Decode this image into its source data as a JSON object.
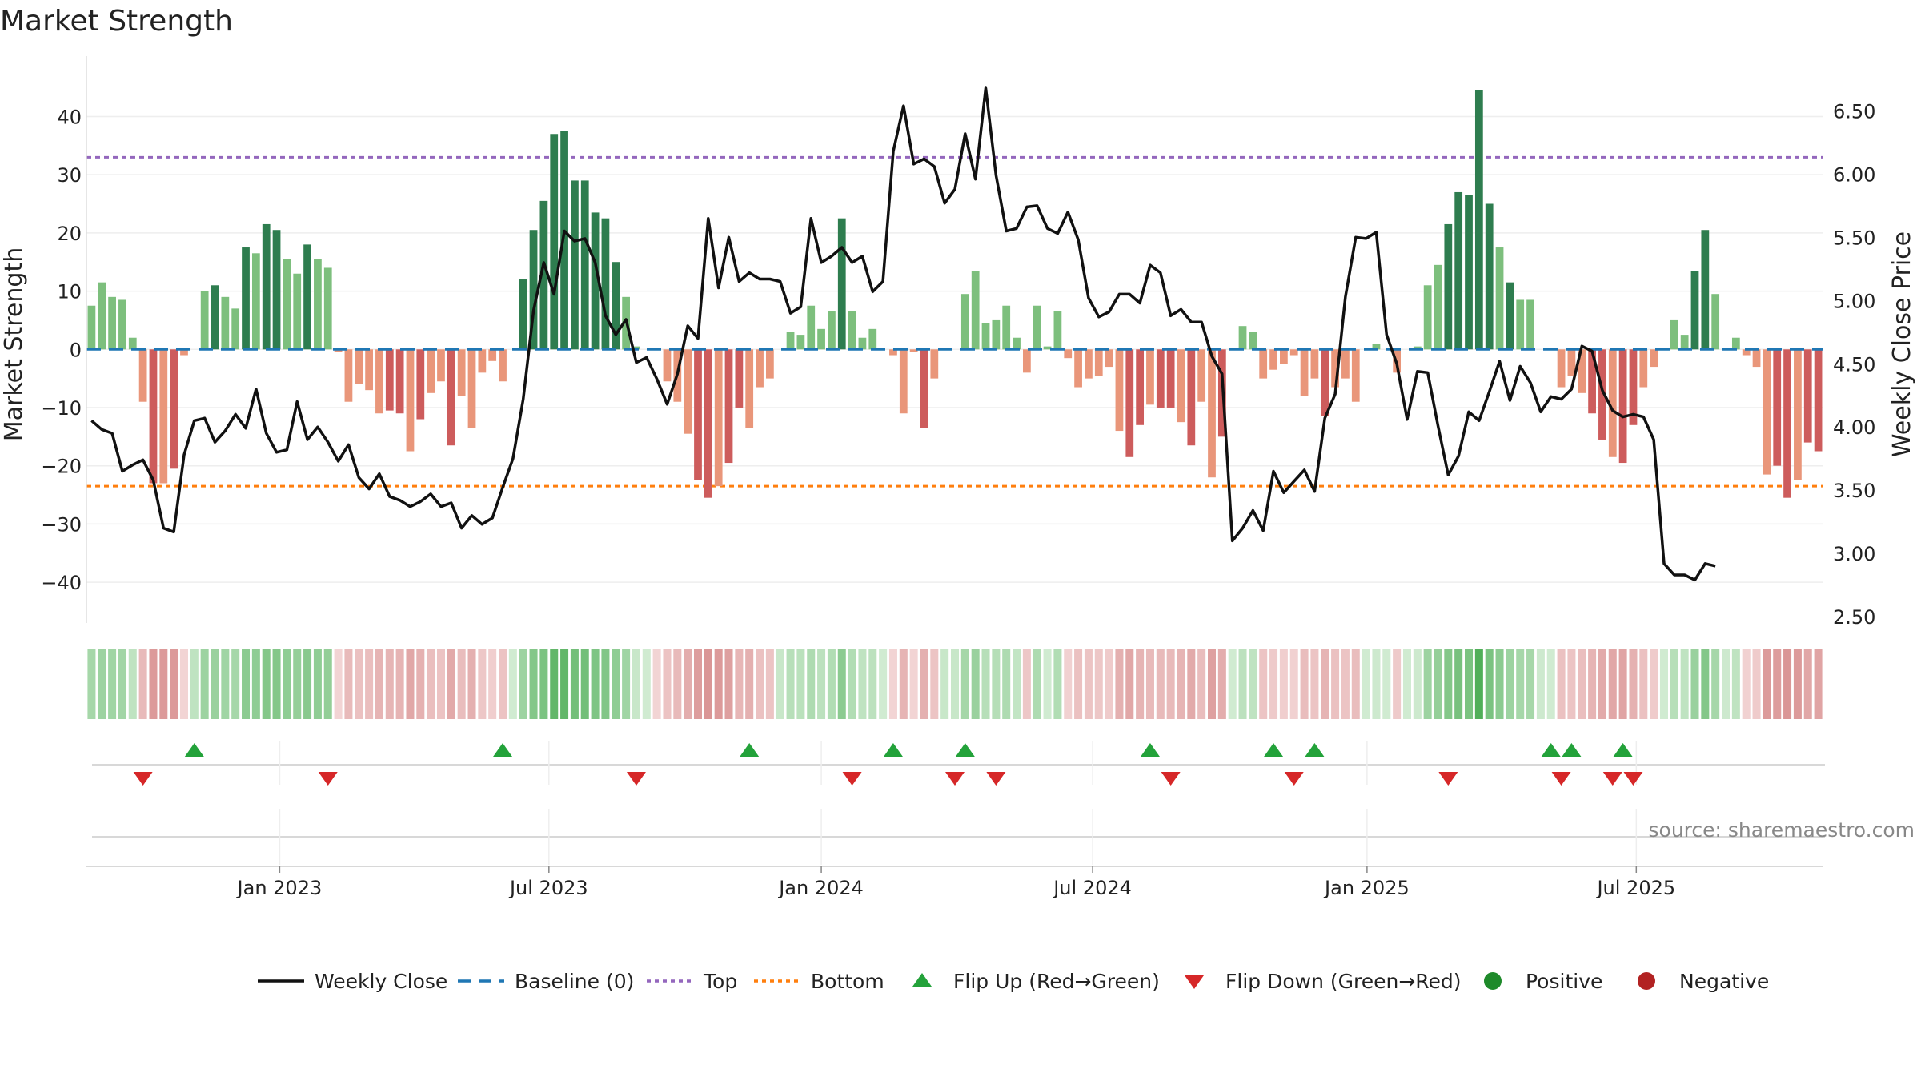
{
  "title": "Market Strength",
  "source": "source: sharemaestro.com",
  "colors": {
    "pos_dark": "#2e7d4f",
    "pos_light": "#7dbf7d",
    "neg_dark": "#cd5c5c",
    "neg_light": "#e9967a",
    "line": "#111111",
    "baseline": "#1f77b4",
    "top": "#9467bd",
    "bottom": "#ff7f0e",
    "flip_up": "#23a23a",
    "flip_down": "#d62728",
    "pos_dot": "#1e8a2a",
    "neg_dot": "#b22222"
  },
  "chart_data": {
    "type": "bar+line",
    "title": "Market Strength",
    "ylabel": "Market Strength",
    "y2label": "Weekly Close Price",
    "ylim": [
      -47,
      49
    ],
    "y2lim": [
      2.45,
      6.87
    ],
    "yticks": [
      40,
      30,
      20,
      10,
      0,
      -10,
      -20,
      -30,
      -40
    ],
    "ytick_labels": [
      "40",
      "30",
      "20",
      "10",
      "0",
      "−10",
      "−20",
      "−30",
      "−40"
    ],
    "y2ticks": [
      6.5,
      6.0,
      5.5,
      5.0,
      4.5,
      4.0,
      3.5,
      3.0,
      2.5
    ],
    "y2tick_labels": [
      "6.50",
      "6.00",
      "5.50",
      "5.00",
      "4.50",
      "4.00",
      "3.50",
      "3.00",
      "2.50"
    ],
    "x_tick_positions": [
      18.8,
      45.0,
      71.5,
      97.9,
      124.6,
      150.8
    ],
    "x_tick_labels": [
      "Jan 2023",
      "Jul 2023",
      "Jan 2024",
      "Jul 2024",
      "Jan 2025",
      "Jul 2025"
    ],
    "top_line": 33,
    "bottom_line": -23.5,
    "baseline": 0,
    "strength": [
      7.5,
      11.5,
      9,
      8.5,
      2,
      -9,
      -23,
      -23,
      -20.5,
      -1,
      0,
      10,
      11,
      9,
      7,
      17.5,
      16.5,
      21.5,
      20.5,
      15.5,
      13,
      18,
      15.5,
      14,
      -0.5,
      -9,
      -6,
      -7,
      -11,
      -10.5,
      -11,
      -17.5,
      -12,
      -7.5,
      -5.5,
      -16.5,
      -8,
      -13.5,
      -4,
      -2,
      -5.5,
      0,
      12,
      20.5,
      25.5,
      37,
      37.5,
      29,
      29,
      23.5,
      22.5,
      15,
      9,
      0.5,
      0,
      0,
      -5.5,
      -9,
      -14.5,
      -22.5,
      -25.5,
      -23.5,
      -19.5,
      -10,
      -13.5,
      -6.5,
      -5,
      0,
      3,
      2.5,
      7.5,
      3.5,
      6.5,
      22.5,
      6.5,
      2,
      3.5,
      0,
      -1,
      -11,
      -0.5,
      -13.5,
      -5,
      0,
      0,
      9.5,
      13.5,
      4.5,
      5,
      7.5,
      2,
      -4,
      7.5,
      0.5,
      6.5,
      -1.5,
      -6.5,
      -5,
      -4.5,
      -3,
      -14,
      -18.5,
      -13,
      -9.5,
      -10,
      -10,
      -12.5,
      -16.5,
      -9,
      -22,
      -15,
      0,
      4,
      3,
      -5,
      -3.5,
      -2.5,
      -1,
      -8,
      -5,
      -11.5,
      -6.5,
      -5,
      -9,
      0,
      1,
      0,
      -4,
      0,
      0.5,
      11,
      14.5,
      21.5,
      27,
      26.5,
      44.5,
      25,
      17.5,
      11.5,
      8.5,
      8.5,
      0,
      0,
      -6.5,
      -4.5,
      -7.5,
      -11,
      -15.5,
      -18.5,
      -19.5,
      -13,
      -6.5,
      -3,
      0,
      5,
      2.5,
      13.5,
      20.5,
      9.5,
      0,
      2,
      -1,
      -3,
      -21.5,
      -20,
      -25.5,
      -22.5,
      -16,
      -17.5
    ],
    "close": [
      4.05,
      3.98,
      3.95,
      3.65,
      3.7,
      3.74,
      3.58,
      3.2,
      3.17,
      3.78,
      4.05,
      4.07,
      3.88,
      3.97,
      4.1,
      3.99,
      4.3,
      3.95,
      3.8,
      3.82,
      4.2,
      3.9,
      4.0,
      3.88,
      3.73,
      3.86,
      3.6,
      3.51,
      3.63,
      3.45,
      3.42,
      3.37,
      3.41,
      3.47,
      3.37,
      3.4,
      3.2,
      3.3,
      3.23,
      3.28,
      3.52,
      3.75,
      4.22,
      4.92,
      5.3,
      5.05,
      5.55,
      5.47,
      5.49,
      5.3,
      4.88,
      4.73,
      4.85,
      4.51,
      4.55,
      4.38,
      4.18,
      4.42,
      4.8,
      4.7,
      5.65,
      5.1,
      5.5,
      5.15,
      5.22,
      5.17,
      5.17,
      5.15,
      4.9,
      4.95,
      5.65,
      5.3,
      5.35,
      5.42,
      5.3,
      5.35,
      5.07,
      5.15,
      6.18,
      6.54,
      6.08,
      6.12,
      6.06,
      5.77,
      5.88,
      6.32,
      5.96,
      6.68,
      5.99,
      5.55,
      5.57,
      5.74,
      5.75,
      5.57,
      5.53,
      5.7,
      5.48,
      5.02,
      4.87,
      4.91,
      5.05,
      5.05,
      4.98,
      5.28,
      5.22,
      4.88,
      4.93,
      4.83,
      4.83,
      4.56,
      4.42,
      3.1,
      3.2,
      3.34,
      3.18,
      3.65,
      3.48,
      3.57,
      3.66,
      3.49,
      4.07,
      4.26,
      5.03,
      5.5,
      5.49,
      5.54,
      4.73,
      4.5,
      4.06,
      4.44,
      4.43,
      4.01,
      3.62,
      3.77,
      4.12,
      4.05,
      4.28,
      4.52,
      4.21,
      4.48,
      4.35,
      4.12,
      4.24,
      4.22,
      4.3,
      4.64,
      4.6,
      4.29,
      4.13,
      4.08,
      4.1,
      4.08,
      3.9,
      2.92,
      2.83,
      2.83,
      2.79,
      2.92,
      2.9
    ],
    "zone_strength": [
      0.35,
      0.4,
      0.38,
      0.37,
      0.2,
      -0.3,
      -0.55,
      -0.55,
      -0.55,
      -0.1,
      0.2,
      0.4,
      0.42,
      0.38,
      0.35,
      0.5,
      0.48,
      0.55,
      0.55,
      0.48,
      0.45,
      0.52,
      0.48,
      0.46,
      -0.1,
      -0.3,
      -0.25,
      -0.27,
      -0.35,
      -0.34,
      -0.35,
      -0.45,
      -0.37,
      -0.27,
      -0.23,
      -0.43,
      -0.28,
      -0.38,
      -0.2,
      -0.15,
      -0.23,
      0.1,
      0.4,
      0.55,
      0.6,
      0.75,
      0.75,
      0.65,
      0.65,
      0.58,
      0.56,
      0.48,
      0.38,
      0.15,
      0.1,
      -0.1,
      -0.23,
      -0.3,
      -0.4,
      -0.52,
      -0.58,
      -0.55,
      -0.5,
      -0.33,
      -0.38,
      -0.25,
      -0.22,
      0.15,
      0.25,
      0.23,
      0.3,
      0.22,
      0.28,
      0.5,
      0.28,
      0.2,
      0.22,
      0.1,
      -0.1,
      -0.35,
      -0.1,
      -0.38,
      -0.22,
      0.15,
      0.15,
      0.35,
      0.42,
      0.25,
      0.26,
      0.3,
      0.18,
      -0.2,
      0.3,
      0.1,
      0.28,
      -0.12,
      -0.25,
      -0.22,
      -0.2,
      -0.17,
      -0.38,
      -0.45,
      -0.35,
      -0.3,
      -0.3,
      -0.3,
      -0.35,
      -0.42,
      -0.28,
      -0.5,
      -0.4,
      0.1,
      0.22,
      0.2,
      -0.22,
      -0.18,
      -0.15,
      -0.12,
      -0.28,
      -0.22,
      -0.35,
      -0.25,
      -0.22,
      -0.28,
      0.1,
      0.12,
      0.1,
      -0.18,
      0.1,
      0.12,
      0.4,
      0.45,
      0.55,
      0.62,
      0.6,
      0.85,
      0.6,
      0.5,
      0.4,
      0.35,
      0.35,
      0.12,
      0.1,
      -0.25,
      -0.22,
      -0.27,
      -0.35,
      -0.42,
      -0.45,
      -0.47,
      -0.37,
      -0.25,
      -0.17,
      0.1,
      0.25,
      0.2,
      0.42,
      0.55,
      0.35,
      0.12,
      0.2,
      -0.12,
      -0.17,
      -0.55,
      -0.52,
      -0.58,
      -0.55,
      -0.45,
      -0.47
    ],
    "flip_up": [
      10.5,
      40.5,
      64.5,
      78.5,
      85.5,
      103.5,
      115.5,
      119.5,
      142.5,
      144.5,
      149.5
    ],
    "flip_down": [
      5.5,
      23.5,
      53.5,
      74.5,
      84.5,
      88.5,
      105.5,
      117.5,
      132.5,
      143.5,
      148.5,
      150.5
    ],
    "legend": [
      "Weekly Close",
      "Baseline (0)",
      "Top",
      "Bottom",
      "Flip Up (Red→Green)",
      "Flip Down (Green→Red)",
      "Positive",
      "Negative"
    ]
  }
}
